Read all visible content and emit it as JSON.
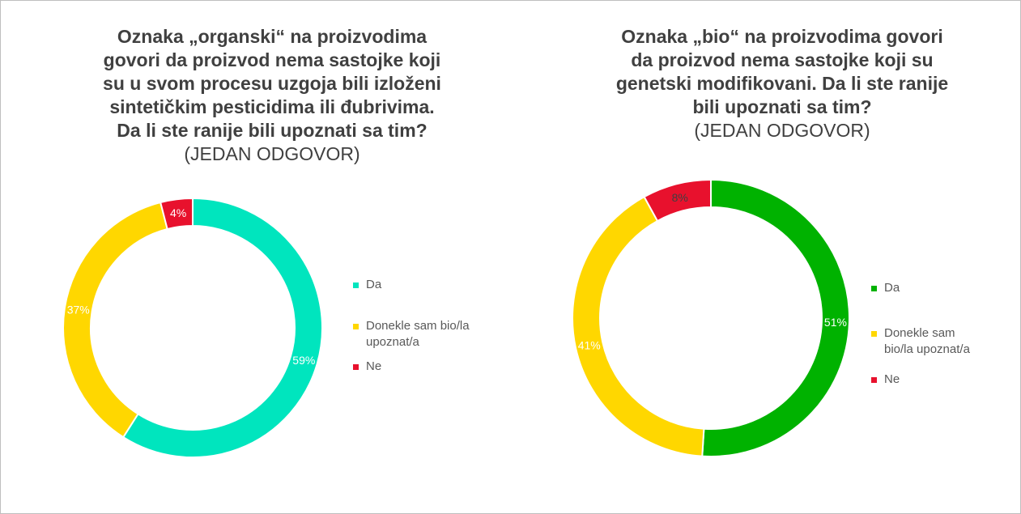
{
  "chart_data": [
    {
      "type": "pie",
      "title": "Oznaka „organski“ na proizvodima govori da proizvod nema sastojke koji su u svom procesu uzgoja bili izloženi sintetičkim pesticidima ili đubrivima. Da li ste ranije bili upoznati sa tim?",
      "title_lines": [
        "Oznaka „organski“ na proizvodima",
        "govori da proizvod nema sastojke koji",
        "su u svom procesu uzgoja bili izloženi",
        "sintetičkim pesticidima ili đubrivima.",
        "Da li ste ranije bili upoznati sa tim?"
      ],
      "subtitle": "(JEDAN ODGOVOR)",
      "categories": [
        "Da",
        "Donekle sam bio/la upoznat/a",
        "Ne"
      ],
      "legend_lines": [
        [
          "Da"
        ],
        [
          "Donekle sam bio/la",
          "upoznat/a"
        ],
        [
          "Ne"
        ]
      ],
      "values": [
        59,
        37,
        4
      ],
      "data_labels": [
        "59%",
        "37%",
        "4%"
      ],
      "colors": [
        "#00E5BE",
        "#FFD700",
        "#E8112D"
      ],
      "label_colors": [
        "#ffffff",
        "#ffffff",
        "#ffffff"
      ],
      "legend_position": "right"
    },
    {
      "type": "pie",
      "title": "Oznaka „bio“ na proizvodima govori da proizvod nema sastojke koji su genetski modifikovani. Da li ste ranije bili upoznati sa tim?",
      "title_lines": [
        "Oznaka „bio“ na proizvodima govori",
        "da proizvod nema sastojke koji su",
        "genetski modifikovani. Da li ste ranije",
        "bili upoznati sa tim?"
      ],
      "subtitle": "(JEDAN ODGOVOR)",
      "categories": [
        "Da",
        "Donekle sam bio/la upoznat/a",
        "Ne"
      ],
      "legend_lines": [
        [
          "Da"
        ],
        [
          "Donekle sam",
          "bio/la upoznat/a"
        ],
        [
          "Ne"
        ]
      ],
      "values": [
        51,
        41,
        8
      ],
      "data_labels": [
        "51%",
        "41%",
        "8%"
      ],
      "colors": [
        "#00B200",
        "#FFD700",
        "#E8112D"
      ],
      "label_colors": [
        "#ffffff",
        "#ffffff",
        "#404040"
      ],
      "legend_position": "right"
    }
  ]
}
